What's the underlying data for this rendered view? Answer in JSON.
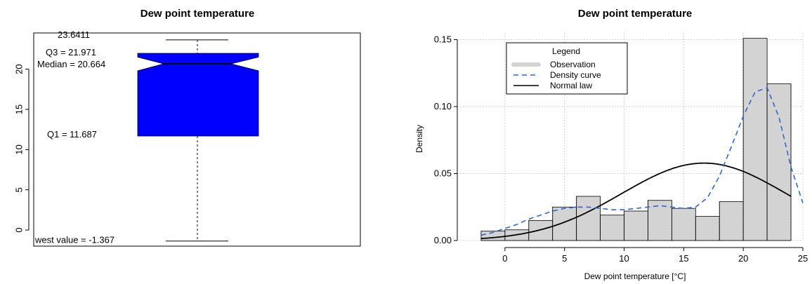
{
  "chart_data": [
    {
      "type": "boxplot",
      "title": "Dew point temperature",
      "notched": true,
      "fill_color": "#0000ff",
      "ylim": [
        -2.0,
        24.5
      ],
      "yticks": [
        0,
        5,
        10,
        15,
        20
      ],
      "stats": {
        "max": 23.6411,
        "q3": 21.971,
        "median": 20.664,
        "q1": 11.687,
        "min": -1.367,
        "notch_low": 19.8,
        "notch_high": 21.5
      },
      "annotations": {
        "max": "23.6411",
        "q3": "Q3 = 21.971",
        "median": "Median = 20.664",
        "q1": "Q1 = 11.687",
        "min": "west value =  -1.367"
      },
      "median_label_color": "#dd2222"
    },
    {
      "type": "histogram",
      "title": "Dew point temperature",
      "xlabel": "Dew point temperature [°C]",
      "ylabel": "Density",
      "xlim": [
        -4,
        25
      ],
      "ylim": [
        0,
        0.155
      ],
      "xticks": [
        0,
        5,
        10,
        15,
        20,
        25
      ],
      "yticks": [
        0.0,
        0.05,
        0.1,
        0.15
      ],
      "ytick_labels": [
        "0.00",
        "0.05",
        "0.10",
        "0.15"
      ],
      "grid": true,
      "bar_color": "#d3d3d3",
      "bins": [
        {
          "x0": -2,
          "x1": 0,
          "density": 0.007
        },
        {
          "x0": 0,
          "x1": 2,
          "density": 0.008
        },
        {
          "x0": 2,
          "x1": 4,
          "density": 0.015
        },
        {
          "x0": 4,
          "x1": 6,
          "density": 0.025
        },
        {
          "x0": 6,
          "x1": 8,
          "density": 0.033
        },
        {
          "x0": 8,
          "x1": 10,
          "density": 0.019
        },
        {
          "x0": 10,
          "x1": 12,
          "density": 0.022
        },
        {
          "x0": 12,
          "x1": 14,
          "density": 0.03
        },
        {
          "x0": 14,
          "x1": 16,
          "density": 0.024
        },
        {
          "x0": 16,
          "x1": 18,
          "density": 0.018
        },
        {
          "x0": 18,
          "x1": 20,
          "density": 0.029
        },
        {
          "x0": 20,
          "x1": 22,
          "density": 0.151
        },
        {
          "x0": 22,
          "x1": 24,
          "density": 0.117
        }
      ],
      "density_curve": {
        "color": "#3366cc",
        "x": [
          -2,
          -1,
          0,
          1,
          2,
          3,
          4,
          5,
          6,
          7,
          8,
          9,
          10,
          11,
          12,
          13,
          14,
          15,
          16,
          17,
          18,
          19,
          20,
          21,
          22,
          23,
          24,
          25
        ],
        "y": [
          0.004,
          0.006,
          0.009,
          0.012,
          0.016,
          0.019,
          0.022,
          0.024,
          0.025,
          0.025,
          0.024,
          0.023,
          0.023,
          0.024,
          0.025,
          0.026,
          0.025,
          0.024,
          0.025,
          0.032,
          0.048,
          0.07,
          0.093,
          0.111,
          0.114,
          0.092,
          0.055,
          0.028
        ]
      },
      "normal_curve": {
        "color": "#000000",
        "mean": 16.7,
        "sd": 6.9,
        "x_from": -2,
        "x_to": 24
      },
      "legend": {
        "title": "Legend",
        "title_color": "#cc4466",
        "position": "top-left",
        "entries": [
          "Observation",
          "Density curve",
          "Normal law"
        ]
      }
    }
  ]
}
